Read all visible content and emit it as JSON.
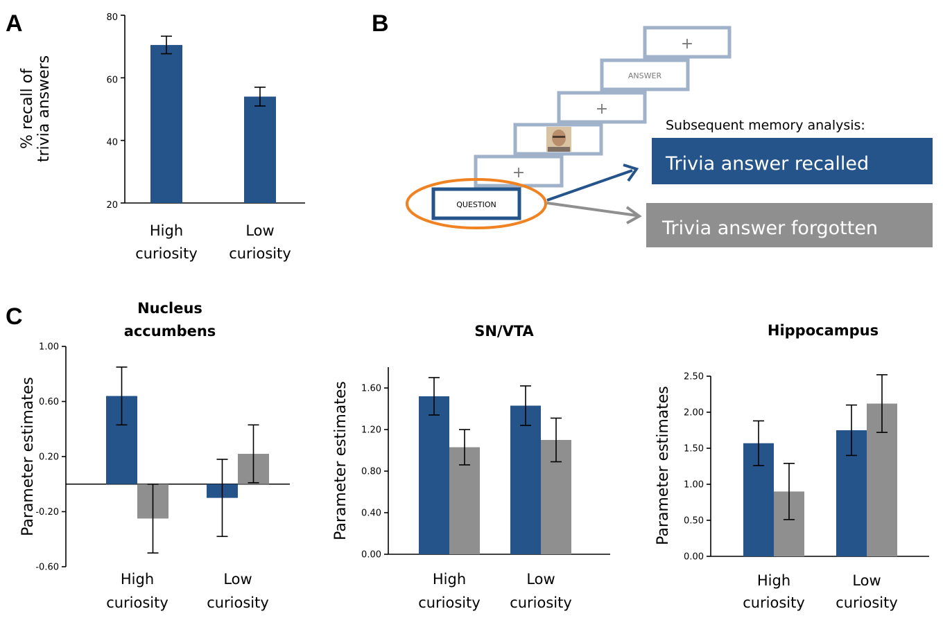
{
  "panels": {
    "a": "A",
    "b": "B",
    "c": "C"
  },
  "colors": {
    "recalled": "#245489",
    "forgotten": "#8f8f8f",
    "orange": "#f08221"
  },
  "chart_data": [
    {
      "id": "A",
      "type": "bar",
      "title": "",
      "ylabel_lines": [
        "% recall of",
        "trivia answers"
      ],
      "ylim": [
        20,
        80
      ],
      "yticks": [
        "20",
        "40",
        "60",
        "80"
      ],
      "ytick_values": [
        20,
        40,
        60,
        80
      ],
      "categories": [
        [
          "High",
          "curiosity"
        ],
        [
          "Low",
          "curiosity"
        ]
      ],
      "series": [
        {
          "values": [
            70.5,
            54.0
          ],
          "errors": [
            2.8,
            3.0
          ],
          "color": "#245489"
        }
      ]
    },
    {
      "id": "C1",
      "type": "bar",
      "title_lines": [
        "Nucleus",
        "accumbens"
      ],
      "ylabel": "Parameter estimates",
      "ylim": [
        -0.6,
        1.0
      ],
      "yticks": [
        "-0.60",
        "-0.20",
        "0.20",
        "0.60",
        "1.00"
      ],
      "ytick_values": [
        -0.6,
        -0.2,
        0.2,
        0.6,
        1.0
      ],
      "categories": [
        [
          "High",
          "curiosity"
        ],
        [
          "Low",
          "curiosity"
        ]
      ],
      "series": [
        {
          "values": [
            0.64,
            -0.1
          ],
          "errors": [
            0.21,
            0.28
          ],
          "color": "#245489"
        },
        {
          "values": [
            -0.25,
            0.22
          ],
          "errors": [
            0.25,
            0.21
          ],
          "color": "#8f8f8f"
        }
      ]
    },
    {
      "id": "C2",
      "type": "bar",
      "title_lines": [
        "SN/VTA"
      ],
      "ylabel": "Parameter estimates",
      "ylim": [
        0.0,
        1.8
      ],
      "yticks": [
        "0.00",
        "0.40",
        "0.80",
        "1.20",
        "1.60"
      ],
      "ytick_values": [
        0.0,
        0.4,
        0.8,
        1.2,
        1.6
      ],
      "categories": [
        [
          "High",
          "curiosity"
        ],
        [
          "Low",
          "curiosity"
        ]
      ],
      "series": [
        {
          "values": [
            1.52,
            1.43
          ],
          "errors": [
            0.18,
            0.19
          ],
          "color": "#245489"
        },
        {
          "values": [
            1.03,
            1.1
          ],
          "errors": [
            0.17,
            0.21
          ],
          "color": "#8f8f8f"
        }
      ]
    },
    {
      "id": "C3",
      "type": "bar",
      "title_lines": [
        "Hippocampus"
      ],
      "ylabel": "Parameter estimates",
      "ylim": [
        0.0,
        2.5
      ],
      "yticks": [
        "0.00",
        "0.50",
        "1.00",
        "1.50",
        "2.00",
        "2.50"
      ],
      "ytick_values": [
        0.0,
        0.5,
        1.0,
        1.5,
        2.0,
        2.5
      ],
      "categories": [
        [
          "High",
          "curiosity"
        ],
        [
          "Low",
          "curiosity"
        ]
      ],
      "series": [
        {
          "values": [
            1.57,
            1.75
          ],
          "errors": [
            0.31,
            0.35
          ],
          "color": "#245489"
        },
        {
          "values": [
            0.9,
            2.12
          ],
          "errors": [
            0.39,
            0.4
          ],
          "color": "#8f8f8f"
        }
      ]
    }
  ],
  "diagram": {
    "boxes": [
      "+",
      "ANSWER",
      "+",
      "",
      "+",
      "QUESTION"
    ],
    "memory_label": "Subsequent memory analysis:",
    "recalled_label": "Trivia answer recalled",
    "forgotten_label": "Trivia answer forgotten"
  }
}
